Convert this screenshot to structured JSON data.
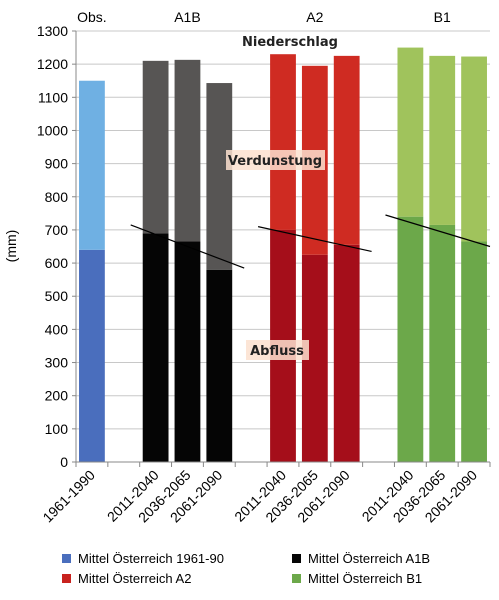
{
  "chart_data": {
    "type": "bar",
    "ylabel": "(mm)",
    "ylim": [
      0,
      1300
    ],
    "yticks": [
      0,
      100,
      200,
      300,
      400,
      500,
      600,
      700,
      800,
      900,
      1000,
      1100,
      1200,
      1300
    ],
    "grid": true,
    "groups": [
      {
        "label": "Obs.",
        "categories": [
          "1961-1990"
        ]
      },
      {
        "label": "A1B",
        "categories": [
          "2011-2040",
          "2036-2065",
          "2061-2090"
        ]
      },
      {
        "label": "A2",
        "categories": [
          "2011-2040",
          "2036-2065",
          "2061-2090"
        ]
      },
      {
        "label": "B1",
        "categories": [
          "2011-2040",
          "2036-2065",
          "2061-2090"
        ]
      }
    ],
    "categories": [
      "1961-1990",
      "2011-2040",
      "2036-2065",
      "2061-2090",
      "2011-2040",
      "2036-2065",
      "2061-2090",
      "2011-2040",
      "2036-2065",
      "2061-2090"
    ],
    "series": [
      {
        "name": "Abfluss",
        "values": [
          640,
          690,
          665,
          580,
          700,
          625,
          655,
          740,
          715,
          665
        ]
      },
      {
        "name": "Verdunstung",
        "values": [
          510,
          520,
          548,
          563,
          530,
          570,
          570,
          510,
          510,
          558
        ]
      }
    ],
    "totals": [
      1150,
      1210,
      1213,
      1143,
      1230,
      1195,
      1225,
      1250,
      1225,
      1223
    ],
    "trend_lines": [
      {
        "group": "A1B",
        "y_start": 715,
        "y_end": 585
      },
      {
        "group": "A2",
        "y_start": 710,
        "y_end": 635
      },
      {
        "group": "B1",
        "y_start": 745,
        "y_end": 650
      }
    ],
    "annotations": {
      "total": "Niederschlag",
      "evaporation": "Verdunstung",
      "runoff": "Abfluss"
    },
    "legend": [
      {
        "label": "Mittel Österreich 1961-90",
        "color": "#4a6ebd"
      },
      {
        "label": "Mittel Österreich A1B",
        "color": "#050505"
      },
      {
        "label": "Mittel Österreich A2",
        "color": "#c8221e"
      },
      {
        "label": "Mittel Österreich B1",
        "color": "#6ca84a"
      }
    ],
    "colors": {
      "obs": {
        "lower": "#4a6ebd",
        "upper": "#6fb0e3"
      },
      "a1b": {
        "lower": "#050505",
        "upper": "#575554"
      },
      "a2": {
        "lower": "#a50e1a",
        "upper": "#cf2b22"
      },
      "b1": {
        "lower": "#6ca84a",
        "upper": "#a0c35c"
      }
    }
  }
}
